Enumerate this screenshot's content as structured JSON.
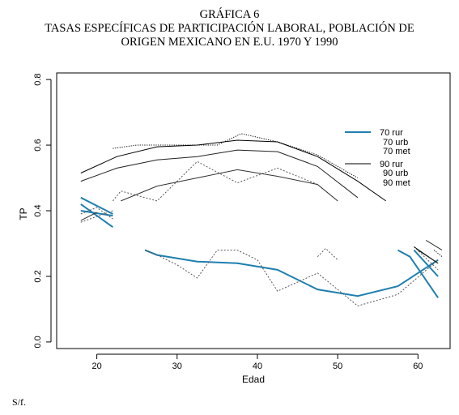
{
  "page": {
    "title_lines": [
      "GRÁFICA 6",
      "TASAS ESPECÍFICAS DE PARTICIPACIÓN LABORAL, POBLACIÓN DE",
      "ORIGEN MEXICANO EN E.U. 1970 Y 1990"
    ],
    "source": "S/f."
  },
  "chart_data": {
    "type": "line",
    "title": "GRÁFICA 6 TASAS ESPECÍFICAS DE PARTICIPACIÓN LABORAL, POBLACIÓN DE ORIGEN MEXICANO EN E.U. 1970 Y 1990",
    "xlabel": "Edad",
    "ylabel": "TP",
    "xlim": [
      15,
      64
    ],
    "ylim": [
      -0.02,
      0.82
    ],
    "x_ticks": [
      20,
      30,
      40,
      50,
      60
    ],
    "y_ticks": [
      0.0,
      0.2,
      0.4,
      0.6,
      0.8
    ],
    "y_tick_labels": [
      "0.0",
      "0.2",
      "0.4",
      "0.6",
      "0.8"
    ],
    "grid": false,
    "legend_position": "top-right",
    "legend": [
      "70 rur",
      "70 urb",
      "70 met",
      "90 rur",
      "90 urb",
      "90 met"
    ],
    "series": [
      {
        "name": "70 rur",
        "color": "#1f7fb0",
        "width": 2,
        "dash": "",
        "segments": [
          [
            [
              18,
              0.44
            ],
            [
              22,
              0.39
            ]
          ],
          [
            [
              18,
              0.4
            ],
            [
              22,
              0.385
            ]
          ],
          [
            [
              18,
              0.42
            ],
            [
              22,
              0.35
            ]
          ],
          [
            [
              26,
              0.28
            ],
            [
              27.5,
              0.265
            ],
            [
              32.5,
              0.245
            ],
            [
              37.5,
              0.24
            ],
            [
              42.5,
              0.22
            ],
            [
              47.5,
              0.16
            ],
            [
              52.5,
              0.14
            ],
            [
              57.5,
              0.17
            ],
            [
              62.5,
              0.25
            ]
          ],
          [
            [
              57.5,
              0.28
            ],
            [
              59,
              0.26
            ],
            [
              62.5,
              0.135
            ]
          ],
          [
            [
              59.5,
              0.28
            ],
            [
              62.5,
              0.2
            ]
          ]
        ]
      },
      {
        "name": "70 urb",
        "color": "#555555",
        "width": 1,
        "dash": "2,2",
        "segments": [
          [
            [
              18,
              0.365
            ],
            [
              22,
              0.4
            ]
          ],
          [
            [
              18,
              0.39
            ],
            [
              20,
              0.41
            ],
            [
              22,
              0.375
            ]
          ],
          [
            [
              22,
              0.43
            ],
            [
              23,
              0.46
            ],
            [
              27.5,
              0.43
            ],
            [
              32.5,
              0.55
            ],
            [
              37.5,
              0.485
            ],
            [
              42.5,
              0.53
            ],
            [
              47.5,
              0.48
            ],
            [
              50,
              0.43
            ]
          ],
          [
            [
              26,
              0.28
            ],
            [
              27.5,
              0.265
            ],
            [
              30,
              0.235
            ],
            [
              32.5,
              0.195
            ],
            [
              35,
              0.28
            ],
            [
              37.5,
              0.28
            ],
            [
              40,
              0.25
            ],
            [
              42.5,
              0.155
            ],
            [
              47.5,
              0.21
            ],
            [
              52.5,
              0.11
            ],
            [
              57.5,
              0.145
            ],
            [
              62.5,
              0.25
            ]
          ],
          [
            [
              47.5,
              0.26
            ],
            [
              48.5,
              0.285
            ],
            [
              50,
              0.25
            ]
          ],
          [
            [
              59.5,
              0.29
            ],
            [
              62.5,
              0.22
            ]
          ]
        ]
      },
      {
        "name": "70 met",
        "color": "#000000",
        "width": 1,
        "dash": "1.2,1.6",
        "segments": [
          [
            [
              22,
              0.59
            ],
            [
              25,
              0.6
            ],
            [
              30,
              0.6
            ],
            [
              35,
              0.6
            ],
            [
              38,
              0.635
            ],
            [
              42.5,
              0.61
            ],
            [
              47.5,
              0.57
            ],
            [
              52.5,
              0.5
            ]
          ],
          [
            [
              62,
              0.28
            ],
            [
              63,
              0.26
            ]
          ]
        ]
      },
      {
        "name": "90 rur",
        "color": "#000000",
        "width": 1,
        "dash": "",
        "segments": [
          [
            [
              18,
              0.515
            ],
            [
              22.5,
              0.565
            ],
            [
              27.5,
              0.595
            ],
            [
              32.5,
              0.6
            ],
            [
              37.5,
              0.615
            ],
            [
              42.5,
              0.61
            ],
            [
              47.5,
              0.565
            ],
            [
              52.5,
              0.49
            ],
            [
              56,
              0.43
            ]
          ],
          [
            [
              59.5,
              0.29
            ],
            [
              62.5,
              0.24
            ]
          ]
        ]
      },
      {
        "name": "90 urb",
        "color": "#222222",
        "width": 1,
        "dash": "",
        "segments": [
          [
            [
              18,
              0.49
            ],
            [
              22.5,
              0.53
            ],
            [
              27.5,
              0.555
            ],
            [
              32.5,
              0.565
            ],
            [
              37.5,
              0.585
            ],
            [
              42.5,
              0.58
            ],
            [
              47.5,
              0.535
            ],
            [
              52.5,
              0.44
            ]
          ],
          [
            [
              60,
              0.28
            ],
            [
              62.5,
              0.24
            ]
          ]
        ]
      },
      {
        "name": "90 met",
        "color": "#333333",
        "width": 1,
        "dash": "",
        "segments": [
          [
            [
              18,
              0.37
            ],
            [
              20,
              0.395
            ]
          ],
          [
            [
              23,
              0.43
            ],
            [
              27.5,
              0.475
            ],
            [
              32.5,
              0.5
            ],
            [
              37.5,
              0.525
            ],
            [
              42.5,
              0.505
            ],
            [
              47.5,
              0.48
            ],
            [
              50,
              0.43
            ]
          ],
          [
            [
              61,
              0.31
            ],
            [
              63,
              0.28
            ]
          ]
        ]
      }
    ]
  }
}
